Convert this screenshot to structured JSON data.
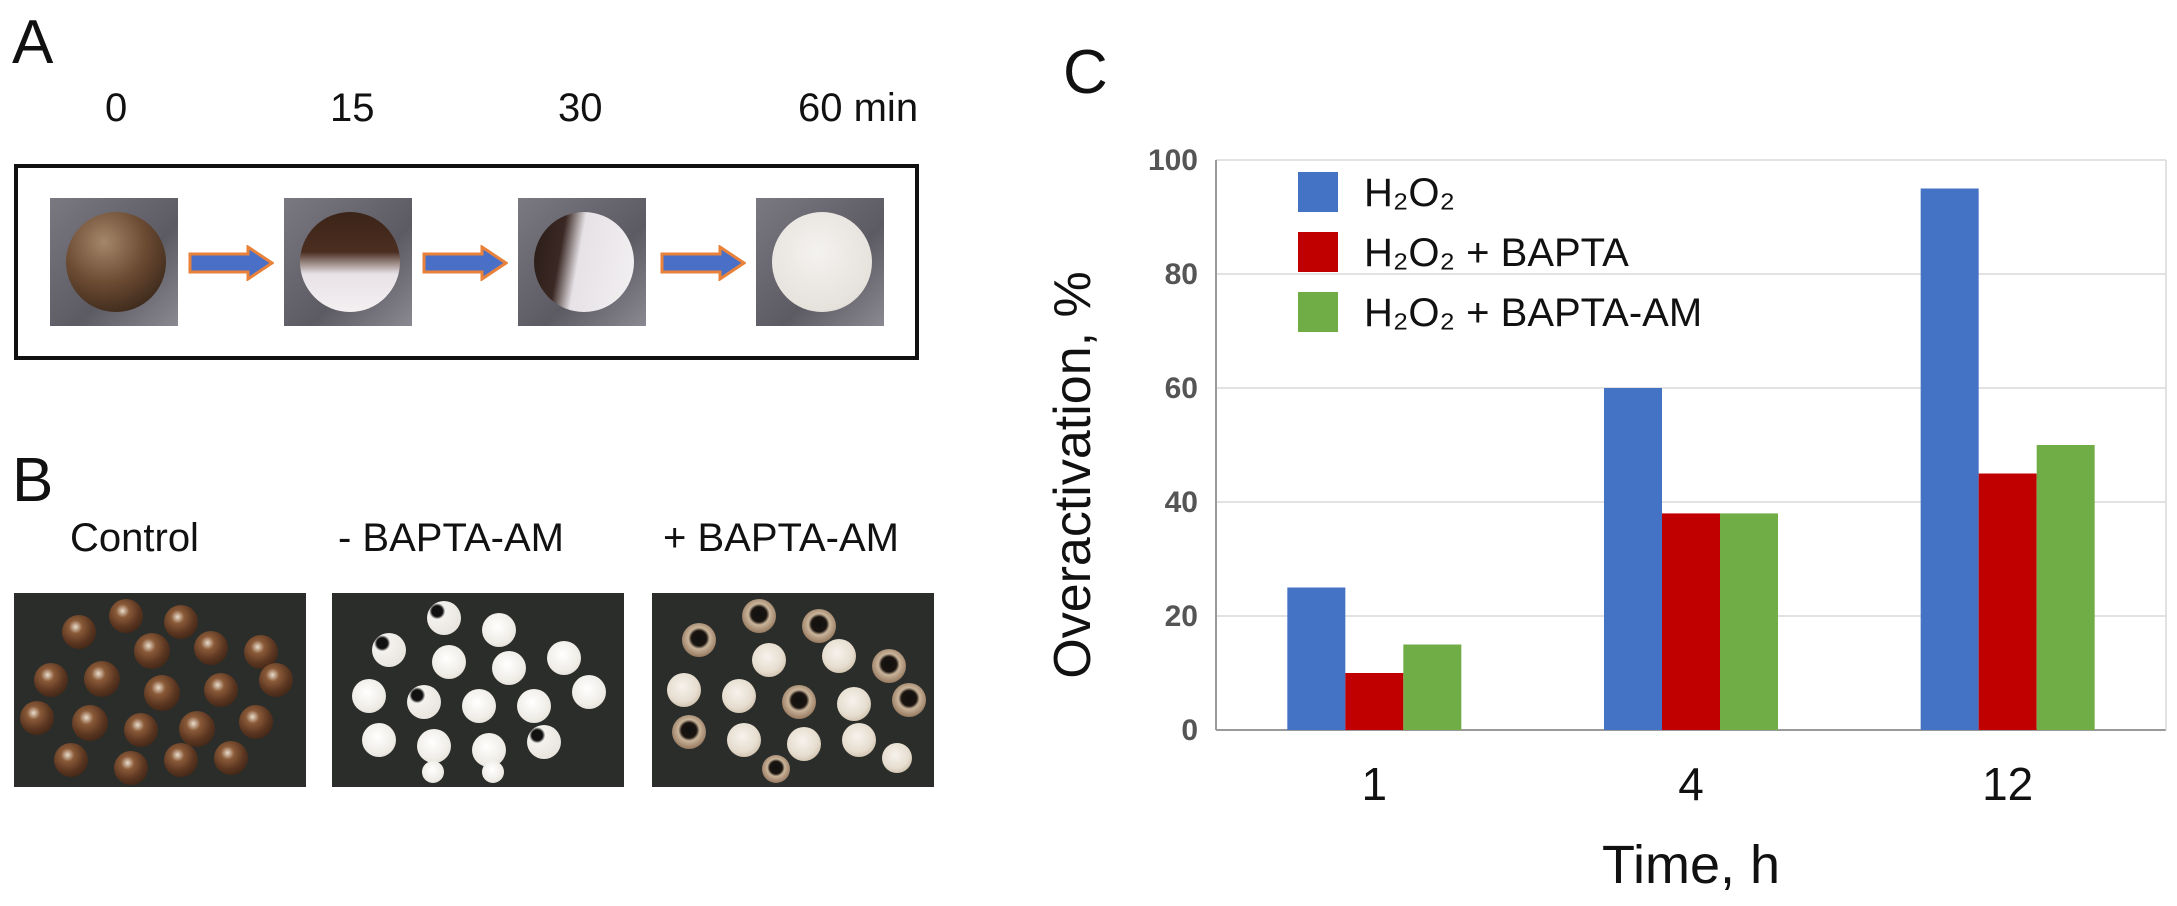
{
  "panels": {
    "a": {
      "letter": "A",
      "time_labels": [
        "0",
        "15",
        "30",
        "60 min"
      ],
      "arrow_colors": {
        "fill": "#4a6fc7",
        "border": "#e8823a"
      }
    },
    "b": {
      "letter": "B",
      "conditions": [
        "Control",
        "- BAPTA-AM",
        "+ BAPTA-AM"
      ]
    },
    "c": {
      "letter": "C"
    }
  },
  "chart_data": {
    "type": "bar",
    "categories": [
      "1",
      "4",
      "12"
    ],
    "series": [
      {
        "name": "H₂O₂",
        "values": [
          25,
          60,
          95
        ],
        "color": "#4472c4"
      },
      {
        "name": "H₂O₂ + BAPTA",
        "values": [
          10,
          38,
          45
        ],
        "color": "#c00000"
      },
      {
        "name": "H₂O₂ + BAPTA-AM",
        "values": [
          15,
          38,
          50
        ],
        "color": "#70ad47"
      }
    ],
    "xlabel": "Time, h",
    "ylabel": "Overactivation, %",
    "ylim": [
      0,
      100
    ],
    "yticks": [
      0,
      20,
      40,
      60,
      80,
      100
    ],
    "grid": true,
    "legend_position": "top-left"
  }
}
